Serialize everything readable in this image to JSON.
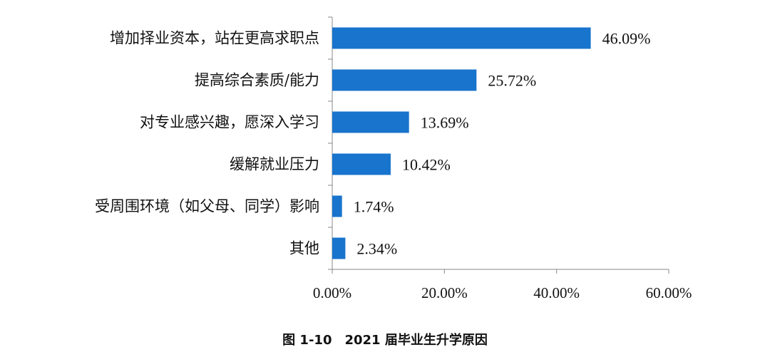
{
  "chart_data": {
    "type": "bar",
    "orientation": "horizontal",
    "categories": [
      "增加择业资本，站在更高求职点",
      "提高综合素质/能力",
      "对专业感兴趣，愿深入学习",
      "缓解就业压力",
      "受周围环境（如父母、同学）影响",
      "其他"
    ],
    "values": [
      46.09,
      25.72,
      13.69,
      10.42,
      1.74,
      2.34
    ],
    "value_labels": [
      "46.09%",
      "25.72%",
      "13.69%",
      "10.42%",
      "1.74%",
      "2.34%"
    ],
    "xlim": [
      0,
      60
    ],
    "xticks": [
      0,
      20,
      40,
      60
    ],
    "xtick_labels": [
      "0.00%",
      "20.00%",
      "40.00%",
      "60.00%"
    ],
    "bar_color": "#1874CD",
    "grid": false,
    "legend": "none"
  },
  "caption": "图 1-10　2021 届毕业生升学原因"
}
